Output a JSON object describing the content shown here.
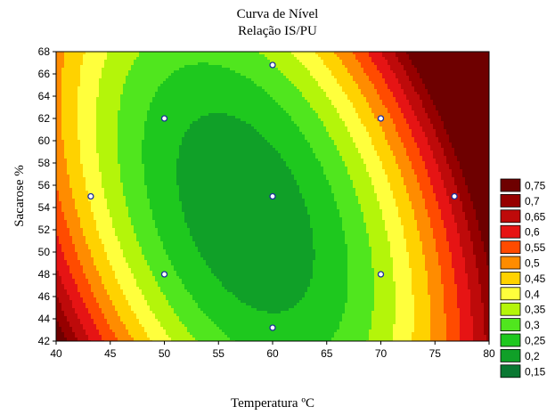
{
  "chart_data": {
    "type": "contour",
    "title": "Curva de Nível",
    "subtitle": "Relação IS/PU",
    "xlabel": "Temperatura ºC",
    "ylabel": "Sacarose %",
    "xlim": [
      40,
      80
    ],
    "ylim": [
      42,
      68
    ],
    "x_ticks": [
      40,
      45,
      50,
      55,
      60,
      65,
      70,
      75,
      80
    ],
    "y_ticks": [
      42,
      44,
      46,
      48,
      50,
      52,
      54,
      56,
      58,
      60,
      62,
      64,
      66,
      68
    ],
    "legend_position": "right",
    "legend_levels": [
      {
        "label": "0,75",
        "color": "#6e0000"
      },
      {
        "label": "0,7",
        "color": "#960000"
      },
      {
        "label": "0,65",
        "color": "#be0a0a"
      },
      {
        "label": "0,6",
        "color": "#e61414"
      },
      {
        "label": "0,55",
        "color": "#ff4b00"
      },
      {
        "label": "0,5",
        "color": "#ff8c00"
      },
      {
        "label": "0,45",
        "color": "#ffd200"
      },
      {
        "label": "0,4",
        "color": "#ffff3c"
      },
      {
        "label": "0,35",
        "color": "#b4f50a"
      },
      {
        "label": "0,3",
        "color": "#50e61e"
      },
      {
        "label": "0,25",
        "color": "#1ec81e"
      },
      {
        "label": "0,2",
        "color": "#10a028"
      },
      {
        "label": "0,15",
        "color": "#0a7832"
      }
    ],
    "design_points": [
      {
        "x": 50,
        "y": 62
      },
      {
        "x": 70,
        "y": 62
      },
      {
        "x": 50,
        "y": 48
      },
      {
        "x": 70,
        "y": 48
      },
      {
        "x": 60,
        "y": 55
      },
      {
        "x": 43.2,
        "y": 55
      },
      {
        "x": 76.8,
        "y": 55
      },
      {
        "x": 60,
        "y": 43.2
      },
      {
        "x": 60,
        "y": 66.8
      }
    ]
  }
}
